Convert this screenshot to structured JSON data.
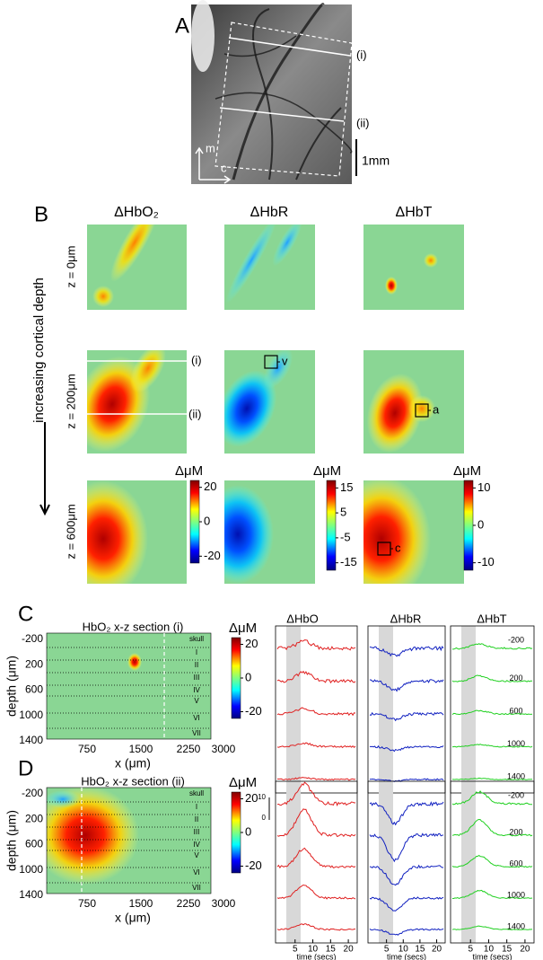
{
  "panel_a": {
    "label": "A",
    "lines": [
      "(i)",
      "(ii)"
    ],
    "scale_bar": "1mm",
    "axis_m": "m",
    "axis_c": "c"
  },
  "panel_b": {
    "label": "B",
    "columns": [
      "ΔHbO₂",
      "ΔHbR",
      "ΔHbT"
    ],
    "depth_axis": "increasing cortical depth",
    "rows": [
      "z = 0μm",
      "z = 200μm",
      "z = 600μm"
    ],
    "lines": [
      "(i)",
      "(ii)"
    ],
    "rois": [
      "v",
      "a",
      "c"
    ],
    "colorbars": [
      {
        "unit": "ΔμM",
        "ticks": [
          20,
          0,
          -20
        ]
      },
      {
        "unit": "ΔμM",
        "ticks": [
          15,
          5,
          -5,
          -15
        ]
      },
      {
        "unit": "ΔμM",
        "ticks": [
          10,
          0,
          -10
        ]
      }
    ]
  },
  "panel_c": {
    "label": "C",
    "title": "HbO₂ x-z section (i)",
    "y_label": "depth (μm)",
    "x_label": "x (μm)",
    "yticks": [
      -200,
      200,
      600,
      1000,
      1400
    ],
    "xticks": [
      750,
      1500,
      2250,
      3000
    ],
    "layers": [
      "skull",
      "I",
      "II",
      "III",
      "IV",
      "V",
      "VI",
      "VII"
    ],
    "colorbar": {
      "unit": "ΔμM",
      "ticks": [
        20,
        0,
        -20
      ]
    },
    "trace_titles": [
      "ΔHbO",
      "ΔHbR",
      "ΔHbT"
    ],
    "depths": [
      -200,
      200,
      600,
      1000,
      1400
    ],
    "scale_ticks": [
      10,
      0
    ]
  },
  "panel_d": {
    "label": "D",
    "title": "HbO₂ x-z section (ii)",
    "y_label": "depth (μm)",
    "x_label": "x (μm)",
    "yticks": [
      -200,
      200,
      600,
      1000,
      1400
    ],
    "xticks": [
      750,
      1500,
      2250,
      3000
    ],
    "layers": [
      "skull",
      "I",
      "II",
      "III",
      "IV",
      "V",
      "VI",
      "VII"
    ],
    "colorbar": {
      "unit": "ΔμM",
      "ticks": [
        20,
        0,
        -20
      ]
    },
    "depths": [
      -200,
      200,
      600,
      1000,
      1400
    ],
    "time_ticks": [
      5,
      10,
      15,
      20
    ],
    "time_label": "time (secs)"
  }
}
